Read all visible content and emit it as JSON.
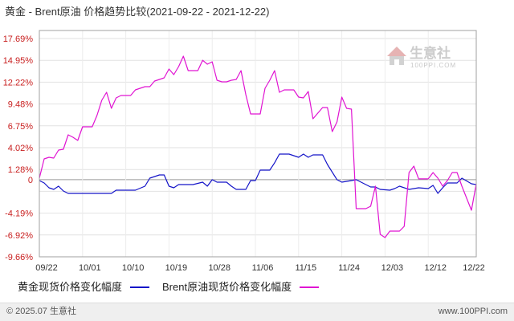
{
  "chart_data": {
    "type": "line",
    "title": "黄金 - Brent原油 价格趋势比较(2021-09-22 - 2021-12-22)",
    "xlim": [
      "2021-09-22",
      "2021-12-22"
    ],
    "ylim": [
      -9.66,
      17.69
    ],
    "grid": true,
    "legend_position": "bottom",
    "yticks": [
      {
        "value": 17.69,
        "label": "17.69%"
      },
      {
        "value": 14.95,
        "label": "14.95%"
      },
      {
        "value": 12.22,
        "label": "12.22%"
      },
      {
        "value": 9.48,
        "label": "9.48%"
      },
      {
        "value": 6.75,
        "label": "6.75%"
      },
      {
        "value": 4.02,
        "label": "4.02%"
      },
      {
        "value": 1.28,
        "label": "1.28%"
      },
      {
        "value": 0,
        "label": "0"
      },
      {
        "value": -4.19,
        "label": "-4.19%"
      },
      {
        "value": -6.92,
        "label": "-6.92%"
      },
      {
        "value": -9.66,
        "label": "-9.66%"
      }
    ],
    "xticks": [
      "09/22",
      "10/01",
      "10/10",
      "10/19",
      "10/28",
      "11/06",
      "11/15",
      "11/24",
      "12/03",
      "12/12",
      "12/22"
    ],
    "series": [
      {
        "name": "黄金现货价格变化幅度",
        "color": "#1414c8",
        "dates": [
          "2021-09-22",
          "2021-09-23",
          "2021-09-24",
          "2021-09-25",
          "2021-09-26",
          "2021-09-27",
          "2021-09-28",
          "2021-10-07",
          "2021-10-08",
          "2021-10-12",
          "2021-10-14",
          "2021-10-15",
          "2021-10-17",
          "2021-10-18",
          "2021-10-19",
          "2021-10-20",
          "2021-10-21",
          "2021-10-24",
          "2021-10-26",
          "2021-10-27",
          "2021-10-28",
          "2021-10-29",
          "2021-10-31",
          "2021-11-01",
          "2021-11-02",
          "2021-11-04",
          "2021-11-05",
          "2021-11-06",
          "2021-11-07",
          "2021-11-09",
          "2021-11-10",
          "2021-11-11",
          "2021-11-13",
          "2021-11-15",
          "2021-11-16",
          "2021-11-17",
          "2021-11-18",
          "2021-11-20",
          "2021-11-21",
          "2021-11-23",
          "2021-11-24",
          "2021-11-26",
          "2021-11-27",
          "2021-11-29",
          "2021-11-30",
          "2021-12-01",
          "2021-12-02",
          "2021-12-04",
          "2021-12-05",
          "2021-12-06",
          "2021-12-08",
          "2021-12-10",
          "2021-12-12",
          "2021-12-13",
          "2021-12-14",
          "2021-12-15",
          "2021-12-16",
          "2021-12-18",
          "2021-12-19",
          "2021-12-21",
          "2021-12-22"
        ],
        "values": [
          -0.11,
          -0.41,
          -1.01,
          -1.21,
          -0.81,
          -1.41,
          -1.72,
          -1.72,
          -1.31,
          -1.31,
          -0.81,
          0.19,
          0.6,
          0.6,
          -0.81,
          -1.01,
          -0.61,
          -0.61,
          -0.31,
          -0.81,
          0.0,
          -0.31,
          -0.31,
          -0.81,
          -1.21,
          -1.21,
          -0.11,
          -0.11,
          1.2,
          1.2,
          2.11,
          3.21,
          3.21,
          2.81,
          3.21,
          2.81,
          3.11,
          3.11,
          1.9,
          0.0,
          -0.31,
          -0.11,
          0.0,
          -0.61,
          -0.91,
          -0.91,
          -1.21,
          -1.31,
          -1.11,
          -0.81,
          -1.21,
          -1.01,
          -1.11,
          -0.71,
          -1.72,
          -1.01,
          -0.41,
          -0.41,
          0.19,
          -0.51,
          -0.61
        ]
      },
      {
        "name": "Brent原油现货价格变化幅度",
        "color": "#e014d2",
        "dates": [
          "2021-09-22",
          "2021-09-23",
          "2021-09-24",
          "2021-09-25",
          "2021-09-26",
          "2021-09-27",
          "2021-09-28",
          "2021-09-29",
          "2021-09-30",
          "2021-10-01",
          "2021-10-03",
          "2021-10-04",
          "2021-10-05",
          "2021-10-06",
          "2021-10-07",
          "2021-10-08",
          "2021-10-09",
          "2021-10-11",
          "2021-10-12",
          "2021-10-13",
          "2021-10-14",
          "2021-10-15",
          "2021-10-16",
          "2021-10-17",
          "2021-10-18",
          "2021-10-19",
          "2021-10-20",
          "2021-10-21",
          "2021-10-22",
          "2021-10-23",
          "2021-10-25",
          "2021-10-26",
          "2021-10-27",
          "2021-10-28",
          "2021-10-29",
          "2021-10-30",
          "2021-10-31",
          "2021-11-01",
          "2021-11-02",
          "2021-11-03",
          "2021-11-04",
          "2021-11-05",
          "2021-11-07",
          "2021-11-08",
          "2021-11-09",
          "2021-11-10",
          "2021-11-11",
          "2021-11-12",
          "2021-11-14",
          "2021-11-15",
          "2021-11-16",
          "2021-11-17",
          "2021-11-18",
          "2021-11-20",
          "2021-11-21",
          "2021-11-22",
          "2021-11-23",
          "2021-11-24",
          "2021-11-25",
          "2021-11-26",
          "2021-11-27",
          "2021-11-29",
          "2021-11-30",
          "2021-12-01",
          "2021-12-02",
          "2021-12-03",
          "2021-12-04",
          "2021-12-06",
          "2021-12-07",
          "2021-12-08",
          "2021-12-09",
          "2021-12-10",
          "2021-12-12",
          "2021-12-13",
          "2021-12-14",
          "2021-12-15",
          "2021-12-16",
          "2021-12-17",
          "2021-12-18",
          "2021-12-19",
          "2021-12-21",
          "2021-12-22"
        ],
        "values": [
          0.19,
          2.61,
          2.81,
          2.71,
          3.71,
          3.81,
          5.62,
          5.32,
          4.92,
          6.63,
          6.63,
          8.04,
          9.95,
          10.95,
          8.94,
          10.25,
          10.55,
          10.55,
          11.25,
          11.46,
          11.66,
          11.66,
          12.36,
          12.56,
          12.76,
          13.87,
          13.17,
          14.17,
          15.48,
          13.67,
          13.67,
          14.97,
          14.47,
          14.77,
          12.46,
          12.26,
          12.26,
          12.46,
          12.56,
          13.67,
          10.65,
          8.24,
          8.24,
          11.46,
          12.46,
          13.67,
          10.95,
          11.25,
          11.25,
          10.35,
          10.25,
          11.05,
          7.63,
          9.04,
          9.04,
          6.03,
          7.23,
          10.35,
          8.94,
          8.84,
          -3.63,
          -3.63,
          -3.33,
          -0.81,
          -6.84,
          -7.25,
          -6.44,
          -6.44,
          -5.84,
          0.9,
          1.7,
          0.1,
          0.1,
          0.9,
          0.19,
          -0.81,
          -0.11,
          0.9,
          0.9,
          -0.81,
          -3.83,
          -0.51
        ]
      }
    ]
  },
  "watermark": {
    "brand": "生意社",
    "site": "100PPI.COM"
  },
  "footer": {
    "copyright": "© 2025.07 生意社",
    "site": "www.100PPI.com"
  }
}
